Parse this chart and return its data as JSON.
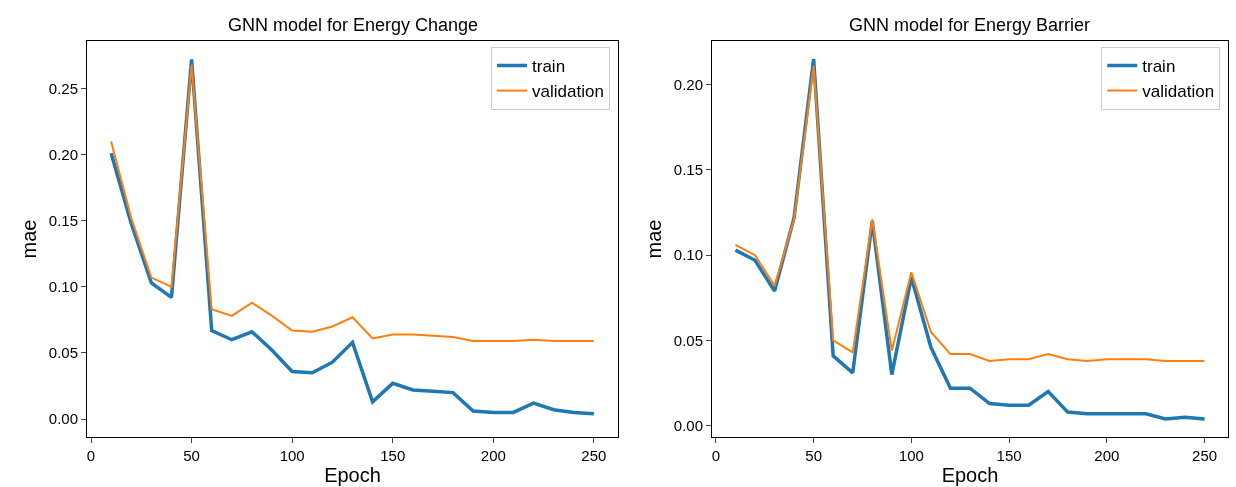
{
  "chart_data": [
    {
      "type": "line",
      "title": "GNN model for Energy Change",
      "xlabel": "Epoch",
      "ylabel": "mae",
      "x": [
        10,
        20,
        30,
        40,
        50,
        60,
        70,
        80,
        90,
        100,
        110,
        120,
        130,
        140,
        150,
        160,
        170,
        180,
        190,
        200,
        210,
        220,
        230,
        240,
        250
      ],
      "series": [
        {
          "name": "train",
          "color": "#1f77b4",
          "values": [
            0.201,
            0.148,
            0.103,
            0.092,
            0.272,
            0.067,
            0.06,
            0.066,
            0.052,
            0.036,
            0.035,
            0.043,
            0.058,
            0.013,
            0.027,
            0.022,
            0.021,
            0.02,
            0.006,
            0.005,
            0.005,
            0.012,
            0.007,
            0.005,
            0.004
          ]
        },
        {
          "name": "validation",
          "color": "#ff7f0e",
          "values": [
            0.21,
            0.152,
            0.107,
            0.1,
            0.268,
            0.083,
            0.078,
            0.088,
            0.078,
            0.067,
            0.066,
            0.07,
            0.077,
            0.061,
            0.064,
            0.064,
            0.063,
            0.062,
            0.059,
            0.059,
            0.059,
            0.06,
            0.059,
            0.059,
            0.059
          ]
        }
      ],
      "xlim": [
        -2,
        262
      ],
      "ylim": [
        -0.0136,
        0.286
      ],
      "xticks": [
        0,
        50,
        100,
        150,
        200,
        250
      ],
      "yticks": [
        {
          "value": 0,
          "label": "0.00"
        },
        {
          "value": 0.05,
          "label": "0.05"
        },
        {
          "value": 0.1,
          "label": "0.10"
        },
        {
          "value": 0.15,
          "label": "0.15"
        },
        {
          "value": 0.2,
          "label": "0.20"
        },
        {
          "value": 0.25,
          "label": "0.25"
        }
      ],
      "legend": "top right",
      "grid": false,
      "marker": "none",
      "line_style": "solid"
    },
    {
      "type": "line",
      "title": "GNN model for Energy Barrier",
      "xlabel": "Epoch",
      "ylabel": "mae",
      "x": [
        10,
        20,
        30,
        40,
        50,
        60,
        70,
        80,
        90,
        100,
        110,
        120,
        130,
        140,
        150,
        160,
        170,
        180,
        190,
        200,
        210,
        220,
        230,
        240,
        250
      ],
      "series": [
        {
          "name": "train",
          "color": "#1f77b4",
          "values": [
            0.103,
            0.097,
            0.079,
            0.122,
            0.215,
            0.041,
            0.031,
            0.12,
            0.03,
            0.087,
            0.046,
            0.022,
            0.022,
            0.013,
            0.012,
            0.012,
            0.02,
            0.008,
            0.007,
            0.007,
            0.007,
            0.007,
            0.004,
            0.005,
            0.004
          ]
        },
        {
          "name": "validation",
          "color": "#ff7f0e",
          "values": [
            0.106,
            0.1,
            0.082,
            0.121,
            0.211,
            0.05,
            0.043,
            0.121,
            0.044,
            0.09,
            0.055,
            0.042,
            0.042,
            0.038,
            0.039,
            0.039,
            0.042,
            0.039,
            0.038,
            0.039,
            0.039,
            0.039,
            0.038,
            0.038,
            0.038
          ]
        }
      ],
      "xlim": [
        -2,
        262
      ],
      "ylim": [
        -0.0066,
        0.2256
      ],
      "xticks": [
        0,
        50,
        100,
        150,
        200,
        250
      ],
      "yticks": [
        {
          "value": 0,
          "label": "0.00"
        },
        {
          "value": 0.05,
          "label": "0.05"
        },
        {
          "value": 0.1,
          "label": "0.10"
        },
        {
          "value": 0.15,
          "label": "0.15"
        },
        {
          "value": 0.2,
          "label": "0.20"
        }
      ],
      "legend": "top right",
      "grid": false,
      "marker": "none",
      "line_style": "solid"
    }
  ]
}
